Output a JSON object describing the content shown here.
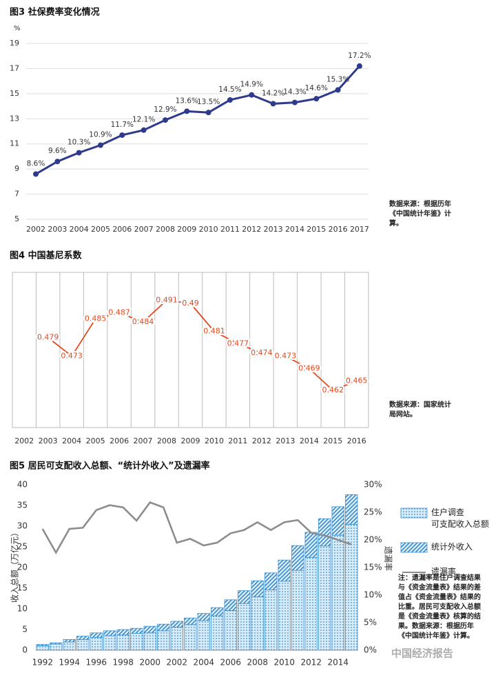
{
  "chart_data": [
    {
      "type": "line",
      "title": "图3  社保费率变化情况",
      "y_label": "%",
      "categories": [
        "2002",
        "2003",
        "2004",
        "2005",
        "2006",
        "2007",
        "2008",
        "2009",
        "2010",
        "2011",
        "2012",
        "2013",
        "2014",
        "2015",
        "2016",
        "2017"
      ],
      "values": [
        8.6,
        9.6,
        10.3,
        10.9,
        11.7,
        12.1,
        12.9,
        13.6,
        13.5,
        14.5,
        14.9,
        14.2,
        14.3,
        14.6,
        15.3,
        17.2
      ],
      "value_labels": [
        "8.6%",
        "9.6%",
        "10.3%",
        "10.9%",
        "11.7%",
        "12.1%",
        "12.9%",
        "13.6%",
        "13.5%",
        "14.5%",
        "14.9%",
        "14.2%",
        "14.3%",
        "14.6%",
        "15.3%",
        "17.2%"
      ],
      "color": "#2e3a8c",
      "markers": true,
      "grid": "horizontal",
      "ylim": [
        5,
        19
      ],
      "yticks": [
        5,
        7,
        9,
        11,
        13,
        15,
        17,
        19
      ],
      "source": "数据来源：根据历年《中国统计年鉴》计算。"
    },
    {
      "type": "line",
      "title": "图4 中国基尼系数",
      "categories": [
        "2002",
        "2003",
        "2004",
        "2005",
        "2006",
        "2007",
        "2008",
        "2009",
        "2010",
        "2011",
        "2012",
        "2013",
        "2014",
        "2015",
        "2016"
      ],
      "values": [
        null,
        0.479,
        0.473,
        0.485,
        0.487,
        0.484,
        0.491,
        0.49,
        0.481,
        0.477,
        0.474,
        0.473,
        0.469,
        0.462,
        0.465
      ],
      "color": "#e2491f",
      "markers": false,
      "grid": "vertical",
      "ylim": [
        0.45,
        0.5
      ],
      "source": "数据来源：国家统计局网站。"
    },
    {
      "type": "bar",
      "title": "图5  居民可支配收入总额、“统计外收入”及遗漏率",
      "ylabel": "收入总额（万亿元）",
      "y2label": "遗漏率",
      "stacked": true,
      "categories": [
        "1992",
        null,
        "1994",
        null,
        "1996",
        null,
        "1998",
        null,
        "2000",
        null,
        "2002",
        null,
        "2004",
        null,
        "2006",
        null,
        "2008",
        null,
        "2010",
        null,
        "2012",
        null,
        "2014",
        null
      ],
      "series": [
        {
          "name": "住户调查\n可支配收入总额",
          "type": "bar",
          "pattern": "dots",
          "color": "#3a8fd0",
          "values": [
            1.1,
            1.5,
            2.0,
            2.6,
            3.1,
            3.5,
            3.7,
            4.1,
            4.2,
            4.7,
            5.6,
            6.2,
            7.2,
            8.3,
            9.6,
            11.3,
            12.9,
            14.6,
            16.7,
            19.3,
            22.4,
            25.2,
            27.8,
            30.4
          ]
        },
        {
          "name": "统计外收入",
          "type": "bar",
          "pattern": "hatch",
          "color": "#3a8fd0",
          "values": [
            0.3,
            0.3,
            0.6,
            0.8,
            1.1,
            1.2,
            1.3,
            1.2,
            1.6,
            1.6,
            1.4,
            1.6,
            1.7,
            2.0,
            2.6,
            3.1,
            3.9,
            4.1,
            5.1,
            6.0,
            6.1,
            6.6,
            6.9,
            7.2
          ]
        },
        {
          "name": "遗漏率",
          "type": "line",
          "axis": "y2",
          "color": "#8c8c8c",
          "values": [
            22,
            17.7,
            22,
            22.2,
            25.4,
            26.3,
            25.9,
            23.5,
            26.8,
            25.9,
            19.5,
            20.2,
            19,
            19.5,
            21.2,
            21.8,
            23.2,
            21.8,
            23.2,
            23.6,
            21.3,
            20.8,
            20,
            19.2
          ]
        }
      ],
      "ylim": [
        0,
        40
      ],
      "yticks": [
        0,
        5,
        10,
        15,
        20,
        25,
        30,
        35,
        40
      ],
      "y2lim": [
        0,
        30
      ],
      "y2ticks": [
        {
          "value": 0,
          "label": "0%"
        },
        {
          "value": 5,
          "label": "5%"
        },
        {
          "value": 10,
          "label": "10%"
        },
        {
          "value": 15,
          "label": "15%"
        },
        {
          "value": 20,
          "label": "20%"
        },
        {
          "value": 25,
          "label": "25%"
        },
        {
          "value": 30,
          "label": "30%"
        }
      ],
      "note": "注：遗漏率是住户调查结果与《资金流量表》结果的差值占《资金流量表》结果的比重。居民可支配收入总额是《资金流量表》核算的结果。数据来源：根据历年《中国统计年鉴》计算。",
      "watermark": "中国经济报告"
    }
  ]
}
